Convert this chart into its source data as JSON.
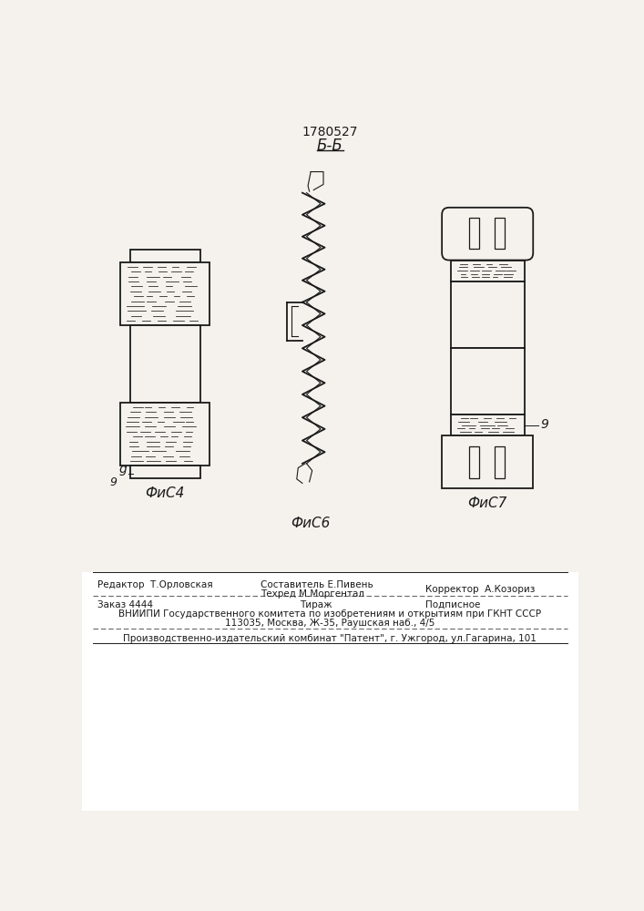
{
  "title": "1780527",
  "section_label": "Б-Б",
  "fig4_label": "ФиС4",
  "fig6_label": "ФиС6",
  "fig7_label": "ФиС7",
  "label_g": "g",
  "footer_editor": "Редактор  Т.Орловская",
  "footer_compiler": "Составитель Е.Пивень",
  "footer_techred": "Техред М.Моргентал",
  "footer_corrector": "Корректор  А.Козориз",
  "footer_order": "Заказ 4444",
  "footer_tirazh": "Тираж",
  "footer_podp": "Подписное",
  "footer_vniip1": "ВНИИПИ Государственного комитета по изобретениям и открытиям при ГКНТ СССР",
  "footer_vniip2": "113035, Москва, Ж-35, Раушская наб., 4/5",
  "footer_pub": "Производственно-издательский комбинат \"Патент\", г. Ужгород, ул.Гагарина, 101",
  "bg_color": "#f5f2ed",
  "line_color": "#1a1a1a"
}
